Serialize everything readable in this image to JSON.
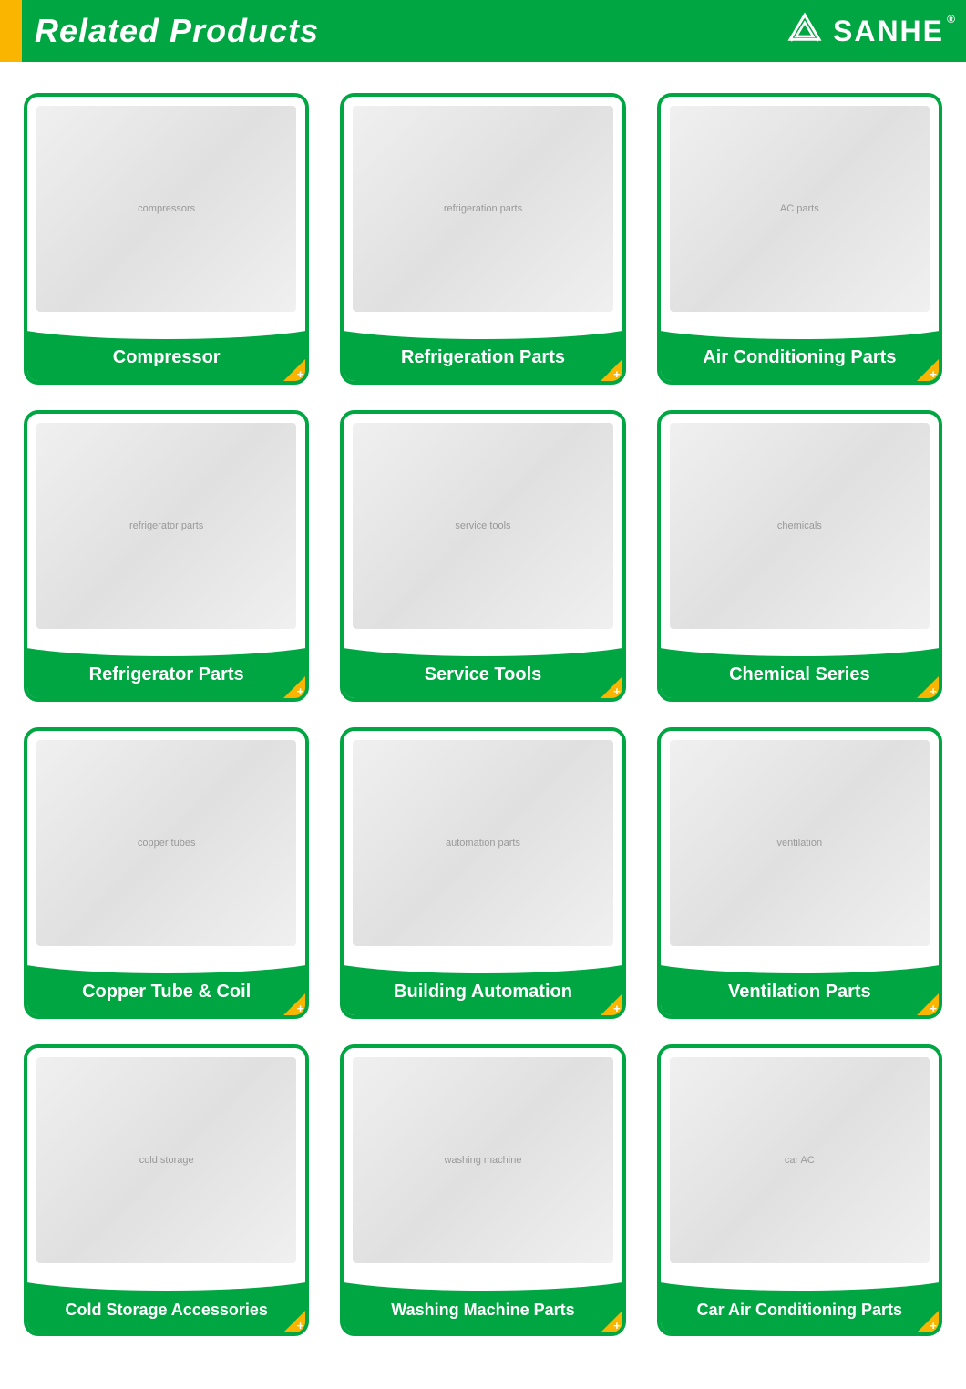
{
  "header": {
    "title": "Related Products",
    "brand_name": "SANHE",
    "accent_color": "#f9b500",
    "bg_color": "#00a641",
    "text_color": "#ffffff"
  },
  "grid": {
    "columns": 3,
    "card_border_color": "#00a641",
    "card_footer_bg": "#00a641",
    "card_corner_color": "#f9b500",
    "card_label_color": "#ffffff"
  },
  "products": [
    {
      "label": "Compressor",
      "image_desc": "compressors"
    },
    {
      "label": "Refrigeration Parts",
      "image_desc": "refrigeration parts"
    },
    {
      "label": "Air Conditioning Parts",
      "image_desc": "AC parts"
    },
    {
      "label": "Refrigerator Parts",
      "image_desc": "refrigerator parts"
    },
    {
      "label": "Service Tools",
      "image_desc": "service tools"
    },
    {
      "label": "Chemical Series",
      "image_desc": "chemicals"
    },
    {
      "label": "Copper Tube & Coil",
      "image_desc": "copper tubes"
    },
    {
      "label": "Building Automation",
      "image_desc": "automation parts"
    },
    {
      "label": "Ventilation Parts",
      "image_desc": "ventilation"
    },
    {
      "label": "Cold Storage Accessories",
      "image_desc": "cold storage",
      "small": true
    },
    {
      "label": "Washing Machine Parts",
      "image_desc": "washing machine",
      "small": true
    },
    {
      "label": "Car Air Conditioning Parts",
      "image_desc": "car AC",
      "small": true
    }
  ]
}
